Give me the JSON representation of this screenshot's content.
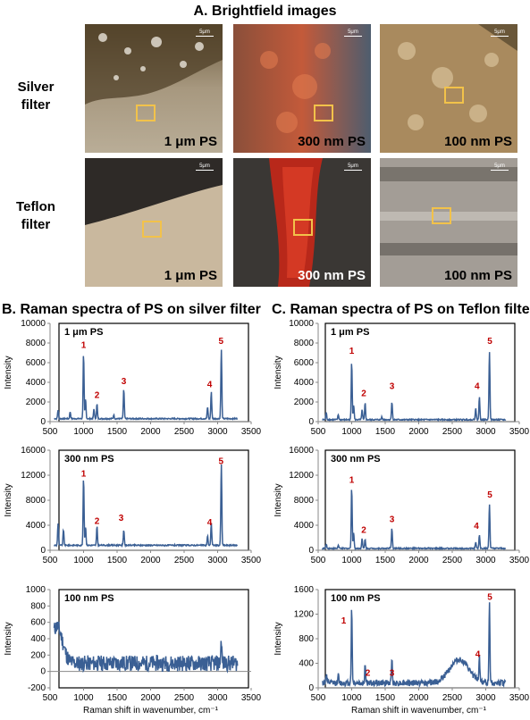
{
  "figure": {
    "title_a": "A. Brightfield images",
    "title_b": "B. Raman spectra of PS on silver filter",
    "title_c": "C. Raman spectra of PS on Teflon filter",
    "rows": [
      "Silver filter",
      "Teflon filter"
    ],
    "scale_text": "5μm",
    "tiles": [
      {
        "label": "1 μm PS",
        "style": "silver-1um",
        "label_color": "dark"
      },
      {
        "label": "300 nm PS",
        "style": "silver-300nm",
        "label_color": "dark"
      },
      {
        "label": "100 nm PS",
        "style": "silver-100nm",
        "label_color": "dark"
      },
      {
        "label": "1 μm PS",
        "style": "teflon-1um",
        "label_color": "dark"
      },
      {
        "label": "300 nm PS",
        "style": "teflon-300nm",
        "label_color": "light"
      },
      {
        "label": "100 nm PS",
        "style": "teflon-100nm",
        "label_color": "dark"
      }
    ],
    "colors": {
      "line": "#3a5f94",
      "peak_label": "#c00000",
      "box": "#f2c24a"
    }
  },
  "chart_data": [
    {
      "type": "line",
      "panel": "B",
      "inset": "1 μm PS",
      "xlim": [
        500,
        3500
      ],
      "ylim": [
        0,
        10000
      ],
      "xticks": [
        500,
        1000,
        1500,
        2000,
        2500,
        3000,
        3500
      ],
      "yticks": [
        0,
        2000,
        4000,
        6000,
        8000,
        10000
      ],
      "ylabel": "Intensity",
      "xlabel": "",
      "baseline": 300,
      "peaks": [
        [
          620,
          900
        ],
        [
          800,
          700
        ],
        [
          1000,
          6600
        ],
        [
          1030,
          2000
        ],
        [
          1155,
          1000
        ],
        [
          1200,
          1500
        ],
        [
          1450,
          400
        ],
        [
          1600,
          3000
        ],
        [
          2850,
          1200
        ],
        [
          2905,
          2700
        ],
        [
          3055,
          7100
        ]
      ],
      "peak_labels": [
        {
          "text": "1",
          "x": 1000,
          "y": 7500
        },
        {
          "text": "2",
          "x": 1200,
          "y": 2400
        },
        {
          "text": "3",
          "x": 1600,
          "y": 3800
        },
        {
          "text": "4",
          "x": 2880,
          "y": 3500
        },
        {
          "text": "5",
          "x": 3050,
          "y": 7900
        }
      ]
    },
    {
      "type": "line",
      "panel": "C",
      "inset": "1 μm PS",
      "xlim": [
        500,
        3500
      ],
      "ylim": [
        0,
        10000
      ],
      "xticks": [
        500,
        1000,
        1500,
        2000,
        2500,
        3000,
        3500
      ],
      "yticks": [
        0,
        2000,
        4000,
        6000,
        8000,
        10000
      ],
      "ylabel": "Intensity",
      "xlabel": "",
      "baseline": 200,
      "peaks": [
        [
          620,
          700
        ],
        [
          800,
          500
        ],
        [
          1000,
          5900
        ],
        [
          1030,
          1500
        ],
        [
          1155,
          1000
        ],
        [
          1200,
          1700
        ],
        [
          1450,
          300
        ],
        [
          1600,
          1800
        ],
        [
          2850,
          1200
        ],
        [
          2905,
          2300
        ],
        [
          3055,
          7000
        ]
      ],
      "peak_labels": [
        {
          "text": "1",
          "x": 1000,
          "y": 6900
        },
        {
          "text": "2",
          "x": 1180,
          "y": 2600
        },
        {
          "text": "3",
          "x": 1600,
          "y": 3300
        },
        {
          "text": "4",
          "x": 2870,
          "y": 3300
        },
        {
          "text": "5",
          "x": 3060,
          "y": 7900
        }
      ]
    },
    {
      "type": "line",
      "panel": "B",
      "inset": "300 nm PS",
      "xlim": [
        500,
        3500
      ],
      "ylim": [
        0,
        16000
      ],
      "xticks": [
        500,
        1000,
        1500,
        2000,
        2500,
        3000,
        3500
      ],
      "yticks": [
        0,
        4000,
        8000,
        12000,
        16000
      ],
      "ylabel": "Intensity",
      "xlabel": "",
      "baseline": 800,
      "peaks": [
        [
          620,
          3500
        ],
        [
          700,
          2500
        ],
        [
          1000,
          10800
        ],
        [
          1030,
          3000
        ],
        [
          1200,
          3000
        ],
        [
          1600,
          2500
        ],
        [
          2850,
          1500
        ],
        [
          2905,
          3500
        ],
        [
          3055,
          13000
        ]
      ],
      "peak_labels": [
        {
          "text": "1",
          "x": 1000,
          "y": 11800
        },
        {
          "text": "2",
          "x": 1200,
          "y": 4200
        },
        {
          "text": "3",
          "x": 1560,
          "y": 4700
        },
        {
          "text": "4",
          "x": 2880,
          "y": 4000
        },
        {
          "text": "5",
          "x": 3050,
          "y": 13800
        }
      ]
    },
    {
      "type": "line",
      "panel": "C",
      "inset": "300 nm PS",
      "xlim": [
        500,
        3500
      ],
      "ylim": [
        0,
        16000
      ],
      "xticks": [
        500,
        1000,
        1500,
        2000,
        2500,
        3000,
        3500
      ],
      "yticks": [
        0,
        4000,
        8000,
        12000,
        16000
      ],
      "ylabel": "Intensity",
      "xlabel": "",
      "baseline": 300,
      "peaks": [
        [
          620,
          700
        ],
        [
          800,
          500
        ],
        [
          1000,
          9800
        ],
        [
          1030,
          2500
        ],
        [
          1155,
          1500
        ],
        [
          1200,
          1500
        ],
        [
          1600,
          3200
        ],
        [
          2850,
          1000
        ],
        [
          2905,
          2200
        ],
        [
          3055,
          7100
        ]
      ],
      "peak_labels": [
        {
          "text": "1",
          "x": 1000,
          "y": 10800
        },
        {
          "text": "2",
          "x": 1180,
          "y": 2800
        },
        {
          "text": "3",
          "x": 1600,
          "y": 4500
        },
        {
          "text": "4",
          "x": 2860,
          "y": 3400
        },
        {
          "text": "5",
          "x": 3060,
          "y": 8400
        }
      ]
    },
    {
      "type": "line",
      "panel": "B",
      "inset": "100 nm PS",
      "xlim": [
        500,
        3500
      ],
      "ylim": [
        -200,
        1000
      ],
      "xticks": [
        500,
        1000,
        1500,
        2000,
        2500,
        3000,
        3500
      ],
      "yticks": [
        -200,
        0,
        200,
        400,
        600,
        800,
        1000
      ],
      "ylabel": "Intensity",
      "xlabel": "Raman shift in wavenumber, cm⁻¹",
      "baseline": 100,
      "noise": 90,
      "broad": [
        [
          600,
          450,
          120
        ]
      ],
      "peaks": [
        [
          3055,
          300
        ]
      ],
      "peak_labels": []
    },
    {
      "type": "line",
      "panel": "C",
      "inset": "100 nm PS",
      "xlim": [
        500,
        3500
      ],
      "ylim": [
        0,
        1600
      ],
      "xticks": [
        500,
        1000,
        1500,
        2000,
        2500,
        3000,
        3500
      ],
      "yticks": [
        0,
        400,
        800,
        1200,
        1600
      ],
      "ylabel": "Intensity",
      "xlabel": "Raman shift in wavenumber, cm⁻¹",
      "baseline": 80,
      "noise": 40,
      "broad": [
        [
          2600,
          380,
          200
        ]
      ],
      "peaks": [
        [
          620,
          150
        ],
        [
          800,
          120
        ],
        [
          1000,
          1200
        ],
        [
          1200,
          300
        ],
        [
          1600,
          400
        ],
        [
          2905,
          400
        ],
        [
          3055,
          1300
        ]
      ],
      "peak_labels": [
        {
          "text": "1",
          "x": 880,
          "y": 1050
        },
        {
          "text": "2",
          "x": 1240,
          "y": 200
        },
        {
          "text": "3",
          "x": 1600,
          "y": 200
        },
        {
          "text": "4",
          "x": 2880,
          "y": 500
        },
        {
          "text": "5",
          "x": 3060,
          "y": 1430
        }
      ]
    }
  ]
}
